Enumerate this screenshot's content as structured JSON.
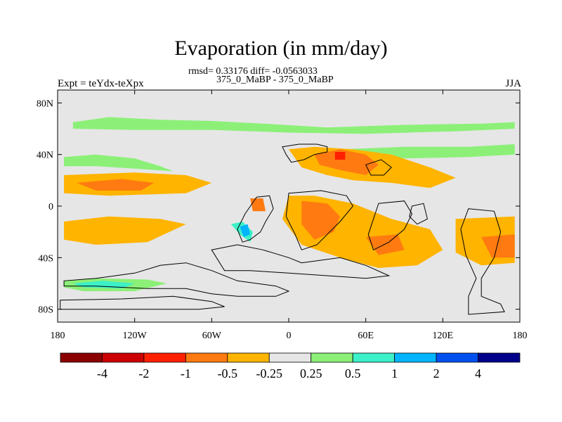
{
  "chart_data": {
    "type": "contour-map",
    "title": "Evaporation (in mm/day)",
    "stats_line": "rmsd= 0.33176 diff= -0.0563033",
    "subtitle": "375_0_MaBP - 375_0_MaBP",
    "left_label": "Expt = teYdx-teXpx",
    "right_label": "JJA",
    "x_ticks": [
      "180",
      "120W",
      "60W",
      "0",
      "60E",
      "120E",
      "180"
    ],
    "x_tick_values": [
      -180,
      -120,
      -60,
      0,
      60,
      120,
      180
    ],
    "y_ticks": [
      "80N",
      "40N",
      "0",
      "40S",
      "80S"
    ],
    "y_tick_values": [
      80,
      40,
      0,
      -40,
      -80
    ],
    "xlim": [
      -180,
      180
    ],
    "ylim": [
      -90,
      90
    ],
    "colorbar": {
      "colors": [
        "#8b0000",
        "#cc0000",
        "#ff2000",
        "#ff7a10",
        "#ffb400",
        "#e6e6e6",
        "#8cf078",
        "#3cf0c8",
        "#00b4ff",
        "#0050f0",
        "#00008b"
      ],
      "labels": [
        "-4",
        "-2",
        "-1",
        "-0.5",
        "-0.25",
        "0.25",
        "0.5",
        "1",
        "2",
        "4"
      ]
    },
    "bands": [
      {
        "level": "0.25 to 0.5",
        "polygon": [
          [
            -168,
            65
          ],
          [
            -140,
            69
          ],
          [
            -100,
            67
          ],
          [
            -60,
            66
          ],
          [
            -20,
            64
          ],
          [
            30,
            61
          ],
          [
            90,
            63
          ],
          [
            150,
            64
          ],
          [
            176,
            65
          ],
          [
            176,
            60
          ],
          [
            130,
            58
          ],
          [
            60,
            56
          ],
          [
            0,
            57
          ],
          [
            -60,
            59
          ],
          [
            -120,
            59
          ],
          [
            -168,
            60
          ]
        ]
      },
      {
        "level": "0.25 to 0.5",
        "polygon": [
          [
            -175,
            38
          ],
          [
            -150,
            40
          ],
          [
            -120,
            37
          ],
          [
            -100,
            31
          ],
          [
            -90,
            27
          ],
          [
            -120,
            29
          ],
          [
            -150,
            31
          ],
          [
            -175,
            31
          ]
        ]
      },
      {
        "level": "0.25 to 0.5",
        "polygon": [
          [
            40,
            44
          ],
          [
            90,
            46
          ],
          [
            140,
            46
          ],
          [
            176,
            48
          ],
          [
            176,
            40
          ],
          [
            140,
            38
          ],
          [
            90,
            37
          ],
          [
            50,
            38
          ]
        ]
      },
      {
        "level": "0.25 to 0.5",
        "polygon": [
          [
            -175,
            -58
          ],
          [
            -150,
            -56
          ],
          [
            -110,
            -57
          ],
          [
            -95,
            -60
          ],
          [
            -120,
            -66
          ],
          [
            -160,
            -66
          ],
          [
            -175,
            -63
          ]
        ]
      },
      {
        "level": "0.5 to 1",
        "polygon": [
          [
            -168,
            -60
          ],
          [
            -145,
            -58
          ],
          [
            -120,
            -60
          ],
          [
            -130,
            -64
          ],
          [
            -160,
            -63
          ]
        ]
      },
      {
        "level": "0.5 to 1",
        "polygon": [
          [
            -45,
            -14
          ],
          [
            -36,
            -12
          ],
          [
            -28,
            -20
          ],
          [
            -30,
            -28
          ],
          [
            -38,
            -22
          ]
        ]
      },
      {
        "level": "1 to 2",
        "polygon": [
          [
            -38,
            -16
          ],
          [
            -32,
            -14
          ],
          [
            -30,
            -22
          ],
          [
            -35,
            -24
          ]
        ]
      },
      {
        "level": "-0.25 to -0.5",
        "polygon": [
          [
            -175,
            24
          ],
          [
            -120,
            26
          ],
          [
            -80,
            24
          ],
          [
            -60,
            18
          ],
          [
            -80,
            10
          ],
          [
            -140,
            8
          ],
          [
            -175,
            10
          ]
        ]
      },
      {
        "level": "-0.5 to -1",
        "polygon": [
          [
            -165,
            18
          ],
          [
            -130,
            21
          ],
          [
            -105,
            18
          ],
          [
            -115,
            12
          ],
          [
            -150,
            12
          ]
        ]
      },
      {
        "level": "-0.25 to -0.5",
        "polygon": [
          [
            -175,
            -12
          ],
          [
            -140,
            -8
          ],
          [
            -100,
            -10
          ],
          [
            -80,
            -14
          ],
          [
            -110,
            -28
          ],
          [
            -150,
            -30
          ],
          [
            -175,
            -26
          ]
        ]
      },
      {
        "level": "-0.25 to -0.5",
        "polygon": [
          [
            0,
            44
          ],
          [
            20,
            46
          ],
          [
            50,
            44
          ],
          [
            80,
            40
          ],
          [
            110,
            30
          ],
          [
            130,
            22
          ],
          [
            110,
            14
          ],
          [
            80,
            18
          ],
          [
            50,
            20
          ],
          [
            30,
            24
          ],
          [
            10,
            30
          ]
        ]
      },
      {
        "level": "-0.25 to -0.5",
        "polygon": [
          [
            0,
            8
          ],
          [
            20,
            8
          ],
          [
            50,
            2
          ],
          [
            80,
            -10
          ],
          [
            110,
            -18
          ],
          [
            120,
            -34
          ],
          [
            100,
            -46
          ],
          [
            70,
            -48
          ],
          [
            40,
            -40
          ],
          [
            10,
            -30
          ],
          [
            -5,
            -10
          ]
        ]
      },
      {
        "level": "-0.5 to -1",
        "polygon": [
          [
            20,
            40
          ],
          [
            40,
            44
          ],
          [
            60,
            40
          ],
          [
            70,
            32
          ],
          [
            60,
            24
          ],
          [
            40,
            28
          ],
          [
            24,
            32
          ]
        ]
      },
      {
        "level": "-0.5 to -1",
        "polygon": [
          [
            10,
            4
          ],
          [
            30,
            2
          ],
          [
            40,
            -8
          ],
          [
            35,
            -20
          ],
          [
            20,
            -26
          ],
          [
            10,
            -14
          ]
        ]
      },
      {
        "level": "-0.5 to -1",
        "polygon": [
          [
            60,
            -24
          ],
          [
            85,
            -22
          ],
          [
            90,
            -34
          ],
          [
            70,
            -38
          ]
        ]
      },
      {
        "level": "-0.5 to -1",
        "polygon": [
          [
            -30,
            6
          ],
          [
            -20,
            6
          ],
          [
            -18,
            -4
          ],
          [
            -28,
            -4
          ]
        ]
      },
      {
        "level": "-1 to -2",
        "polygon": [
          [
            36,
            42
          ],
          [
            44,
            42
          ],
          [
            44,
            36
          ],
          [
            36,
            36
          ]
        ]
      },
      {
        "level": "-0.25 to -0.5",
        "polygon": [
          [
            130,
            -10
          ],
          [
            176,
            -8
          ],
          [
            176,
            -44
          ],
          [
            150,
            -46
          ],
          [
            130,
            -36
          ]
        ]
      },
      {
        "level": "-0.5 to -1",
        "polygon": [
          [
            150,
            -24
          ],
          [
            176,
            -22
          ],
          [
            176,
            -40
          ],
          [
            158,
            -40
          ]
        ]
      }
    ],
    "coastline": [
      [
        [
          -5,
          46
        ],
        [
          8,
          48
        ],
        [
          22,
          48
        ],
        [
          30,
          46
        ],
        [
          30,
          42
        ],
        [
          20,
          40
        ],
        [
          12,
          36
        ],
        [
          2,
          34
        ],
        [
          -2,
          40
        ]
      ],
      [
        [
          -25,
          7
        ],
        [
          -15,
          8
        ],
        [
          -12,
          -2
        ],
        [
          -18,
          -12
        ],
        [
          -22,
          -20
        ],
        [
          -30,
          -26
        ],
        [
          -36,
          -28
        ],
        [
          -40,
          -18
        ],
        [
          -34,
          -6
        ]
      ],
      [
        [
          0,
          10
        ],
        [
          25,
          12
        ],
        [
          45,
          8
        ],
        [
          50,
          0
        ],
        [
          40,
          -12
        ],
        [
          30,
          -22
        ],
        [
          22,
          -30
        ],
        [
          10,
          -34
        ],
        [
          5,
          -22
        ],
        [
          -2,
          -8
        ]
      ],
      [
        [
          60,
          32
        ],
        [
          72,
          36
        ],
        [
          80,
          30
        ],
        [
          74,
          24
        ],
        [
          64,
          24
        ]
      ],
      [
        [
          70,
          2
        ],
        [
          90,
          4
        ],
        [
          96,
          -6
        ],
        [
          90,
          -18
        ],
        [
          78,
          -28
        ],
        [
          66,
          -34
        ],
        [
          62,
          -22
        ],
        [
          66,
          -10
        ]
      ],
      [
        [
          96,
          0
        ],
        [
          105,
          2
        ],
        [
          108,
          -10
        ],
        [
          100,
          -14
        ],
        [
          94,
          -8
        ]
      ],
      [
        [
          140,
          -2
        ],
        [
          160,
          -4
        ],
        [
          165,
          -20
        ],
        [
          160,
          -40
        ],
        [
          150,
          -56
        ],
        [
          150,
          -70
        ],
        [
          165,
          -76
        ],
        [
          168,
          -82
        ],
        [
          140,
          -84
        ],
        [
          140,
          -70
        ],
        [
          146,
          -56
        ],
        [
          138,
          -38
        ],
        [
          134,
          -18
        ]
      ],
      [
        [
          -60,
          -34
        ],
        [
          -40,
          -30
        ],
        [
          -20,
          -34
        ],
        [
          0,
          -40
        ],
        [
          10,
          -44
        ],
        [
          40,
          -40
        ],
        [
          60,
          -46
        ],
        [
          78,
          -54
        ],
        [
          60,
          -56
        ],
        [
          30,
          -54
        ],
        [
          0,
          -52
        ],
        [
          -30,
          -50
        ],
        [
          -50,
          -50
        ]
      ],
      [
        [
          -175,
          -62
        ],
        [
          -150,
          -62
        ],
        [
          -110,
          -64
        ],
        [
          -80,
          -64
        ],
        [
          -60,
          -68
        ],
        [
          -40,
          -70
        ],
        [
          -10,
          -70
        ],
        [
          0,
          -66
        ],
        [
          -10,
          -62
        ],
        [
          -40,
          -58
        ],
        [
          -60,
          -50
        ],
        [
          -80,
          -44
        ],
        [
          -100,
          -46
        ],
        [
          -120,
          -52
        ],
        [
          -150,
          -56
        ],
        [
          -175,
          -58
        ]
      ],
      [
        [
          -178,
          -73
        ],
        [
          -130,
          -72
        ],
        [
          -90,
          -70
        ],
        [
          -60,
          -74
        ],
        [
          -50,
          -78
        ],
        [
          -70,
          -80
        ],
        [
          -110,
          -80
        ],
        [
          -150,
          -80
        ],
        [
          -178,
          -80
        ]
      ]
    ]
  }
}
